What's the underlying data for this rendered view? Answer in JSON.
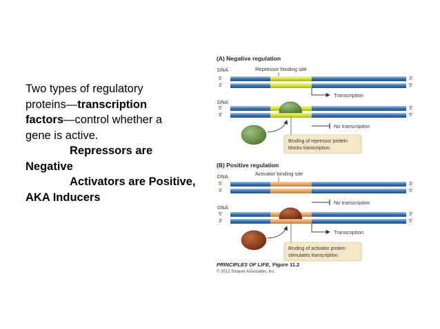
{
  "slide": {
    "line1": "Two types of regulatory",
    "line2_pre": "proteins—",
    "line2_bold": "transcription",
    "line3_bold": "factors",
    "line3_post": "—control whether a",
    "line4": "gene is active.",
    "line5": "Repressors are",
    "line6": "Negative",
    "line7": "Activators are Positive,",
    "line8": "AKA Inducers"
  },
  "figure": {
    "panel_a_title": "(A) Negative regulation",
    "panel_b_title": "(B) Positive regulation",
    "dna_label": "DNA",
    "five_prime": "5'",
    "three_prime": "3'",
    "repressor_site": "Repressor binding site",
    "activator_site": "Activator binding site",
    "transcription": "Transcription",
    "no_transcription": "No transcription",
    "repressor_caption_1": "Binding of repressor protein",
    "repressor_caption_2": "blocks transcription.",
    "activator_caption_1": "Binding of activator protein",
    "activator_caption_2": "stimulates transcription.",
    "credit_book": "PRINCIPLES OF LIFE,",
    "credit_figure": "Figure 11.2",
    "credit_copyright": "© 2012 Sinauer Associates, Inc.",
    "colors": {
      "dna_blue": "#3d78b8",
      "repressor_site": "#d7e32a",
      "activator_site": "#eaa462",
      "repressor_protein": "#6f9a4c",
      "activator_protein": "#8a3f1f",
      "caption_box": "#f5e8c8"
    }
  }
}
